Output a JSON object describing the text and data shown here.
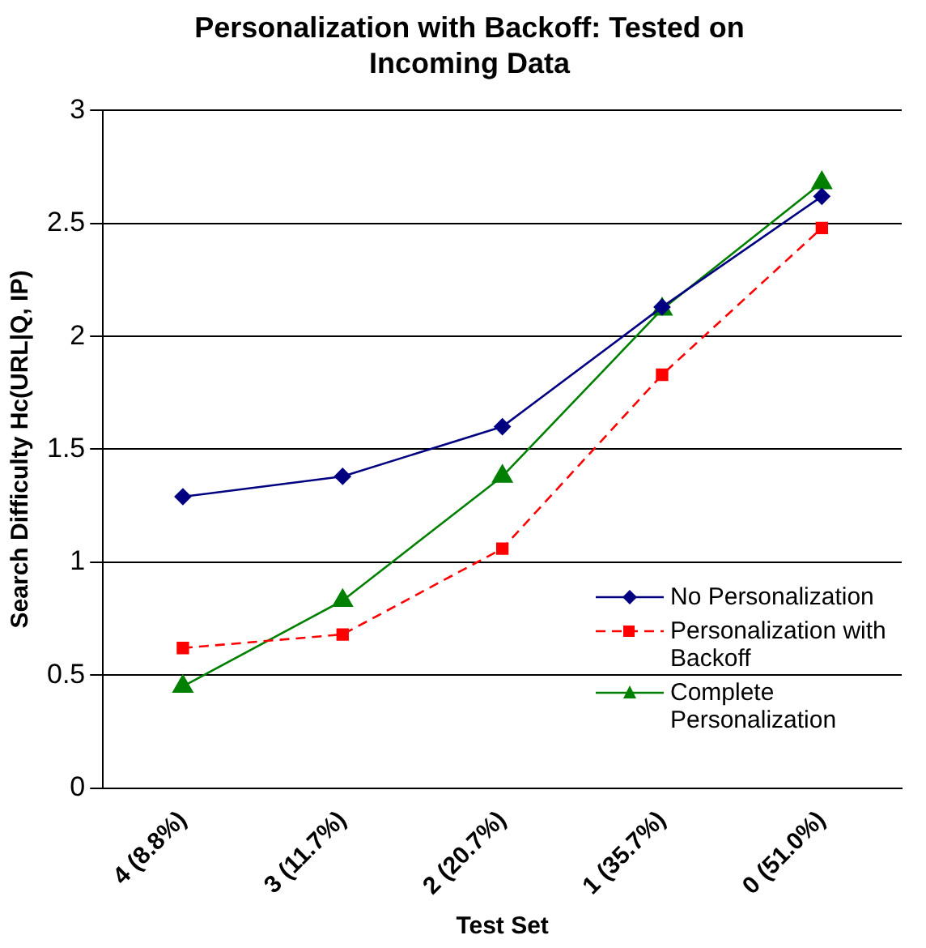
{
  "chart_data": {
    "type": "line",
    "title": "Personalization with Backoff: Tested on Incoming Data",
    "xlabel": "Test Set",
    "ylabel": "Search Difficulty Hc(URL|Q, IP)",
    "categories": [
      "4 (8.8%)",
      "3 (11.7%)",
      "2 (20.7%)",
      "1 (35.7%)",
      "0 (51.0%)"
    ],
    "series": [
      {
        "name": "No Personalization",
        "color": "#000080",
        "marker": "diamond",
        "line_style": "solid",
        "values": [
          1.29,
          1.38,
          1.6,
          2.13,
          2.62
        ]
      },
      {
        "name": "Personalization with Backoff",
        "color": "#ff0000",
        "marker": "square",
        "line_style": "dashed",
        "values": [
          0.62,
          0.68,
          1.06,
          1.83,
          2.48
        ]
      },
      {
        "name": "Complete Personalization",
        "color": "#008000",
        "marker": "triangle",
        "line_style": "solid",
        "values": [
          0.45,
          0.83,
          1.38,
          2.12,
          2.68
        ]
      }
    ],
    "ylim": [
      0,
      3
    ],
    "yticks": [
      0,
      0.5,
      1,
      1.5,
      2,
      2.5,
      3
    ],
    "grid": "y",
    "legend": "right"
  }
}
